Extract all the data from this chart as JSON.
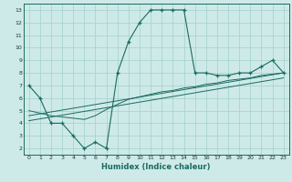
{
  "xlabel": "Humidex (Indice chaleur)",
  "bg_color": "#ceeae8",
  "grid_color": "#a8d4d0",
  "line_color": "#1a6b60",
  "xlim": [
    -0.5,
    23.5
  ],
  "ylim": [
    1.5,
    13.5
  ],
  "xticks": [
    0,
    1,
    2,
    3,
    4,
    5,
    6,
    7,
    8,
    9,
    10,
    11,
    12,
    13,
    14,
    15,
    16,
    17,
    18,
    19,
    20,
    21,
    22,
    23
  ],
  "yticks": [
    2,
    3,
    4,
    5,
    6,
    7,
    8,
    9,
    10,
    11,
    12,
    13
  ],
  "main_x": [
    0,
    1,
    2,
    3,
    4,
    5,
    6,
    7,
    8,
    9,
    10,
    11,
    12,
    13,
    14,
    15,
    16,
    17,
    18,
    19,
    20,
    21,
    22,
    23
  ],
  "main_y": [
    7,
    6,
    4,
    4,
    3,
    2,
    2.5,
    2,
    8,
    10.5,
    12,
    13,
    13,
    13,
    13,
    8,
    8,
    7.8,
    7.8,
    8,
    8,
    8.5,
    9,
    8
  ],
  "line2_x": [
    0,
    1,
    2,
    3,
    4,
    5,
    6,
    7,
    8,
    9,
    10,
    11,
    12,
    13,
    14,
    15,
    16,
    17,
    18,
    19,
    20,
    21,
    22,
    23
  ],
  "line2_y": [
    5.0,
    4.8,
    4.6,
    4.5,
    4.4,
    4.3,
    4.6,
    5.1,
    5.5,
    5.9,
    6.1,
    6.3,
    6.5,
    6.6,
    6.8,
    6.9,
    7.1,
    7.2,
    7.4,
    7.5,
    7.6,
    7.8,
    7.9,
    8.0
  ],
  "line3_x": [
    0,
    23
  ],
  "line3_y": [
    4.6,
    8.0
  ],
  "line4_x": [
    0,
    23
  ],
  "line4_y": [
    4.2,
    7.6
  ]
}
